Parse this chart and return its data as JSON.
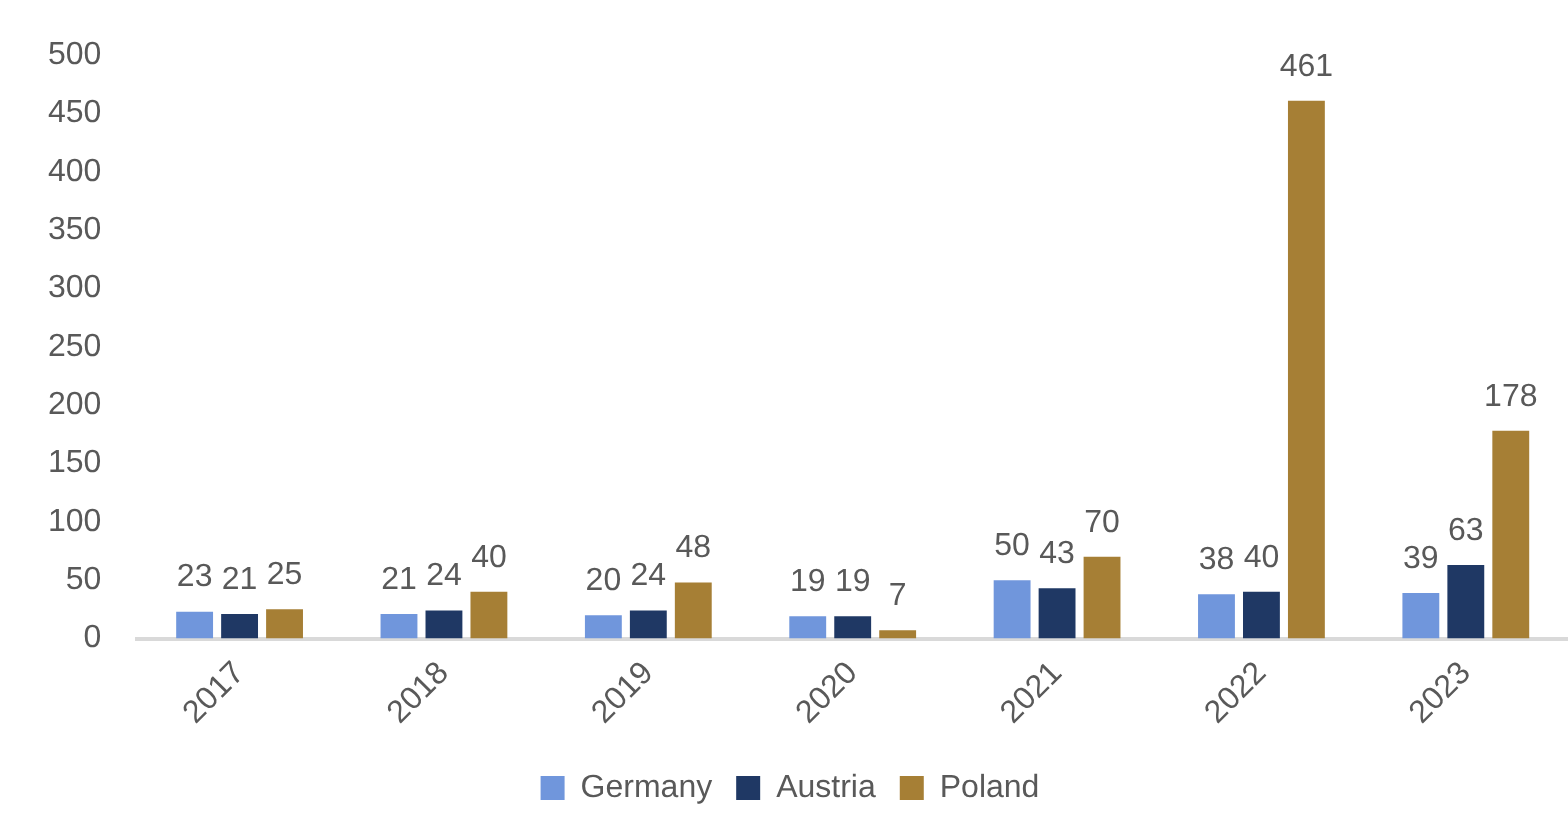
{
  "chart_data": {
    "type": "bar",
    "categories": [
      "2017",
      "2018",
      "2019",
      "2020",
      "2021",
      "2022",
      "2023"
    ],
    "series": [
      {
        "name": "Germany",
        "color": "#7096dc",
        "values": [
          23,
          21,
          20,
          19,
          50,
          38,
          39
        ]
      },
      {
        "name": "Austria",
        "color": "#1f3864",
        "values": [
          21,
          24,
          24,
          19,
          43,
          40,
          63
        ]
      },
      {
        "name": "Poland",
        "color": "#a67f35",
        "values": [
          25,
          40,
          48,
          7,
          70,
          461,
          178
        ]
      }
    ],
    "ylim": [
      0,
      500
    ],
    "yticks": [
      0,
      50,
      100,
      150,
      200,
      250,
      300,
      350,
      400,
      450,
      500
    ],
    "grid": false,
    "legend": "bottom",
    "data_labels": true
  }
}
